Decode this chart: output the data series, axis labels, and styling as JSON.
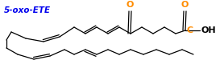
{
  "title": "5-oxo-ETE",
  "title_color": "#0000EE",
  "title_fontsize": 7.5,
  "bg_color": "#FFFFFF",
  "line_color": "#000000",
  "o_color": "#FF8C00",
  "c_color": "#FF8C00",
  "figsize": [
    2.78,
    0.95
  ],
  "dpi": 100,
  "label_O_ketone": "O",
  "label_O_acid": "O",
  "label_C_acid": "C",
  "label_OH": "OH"
}
